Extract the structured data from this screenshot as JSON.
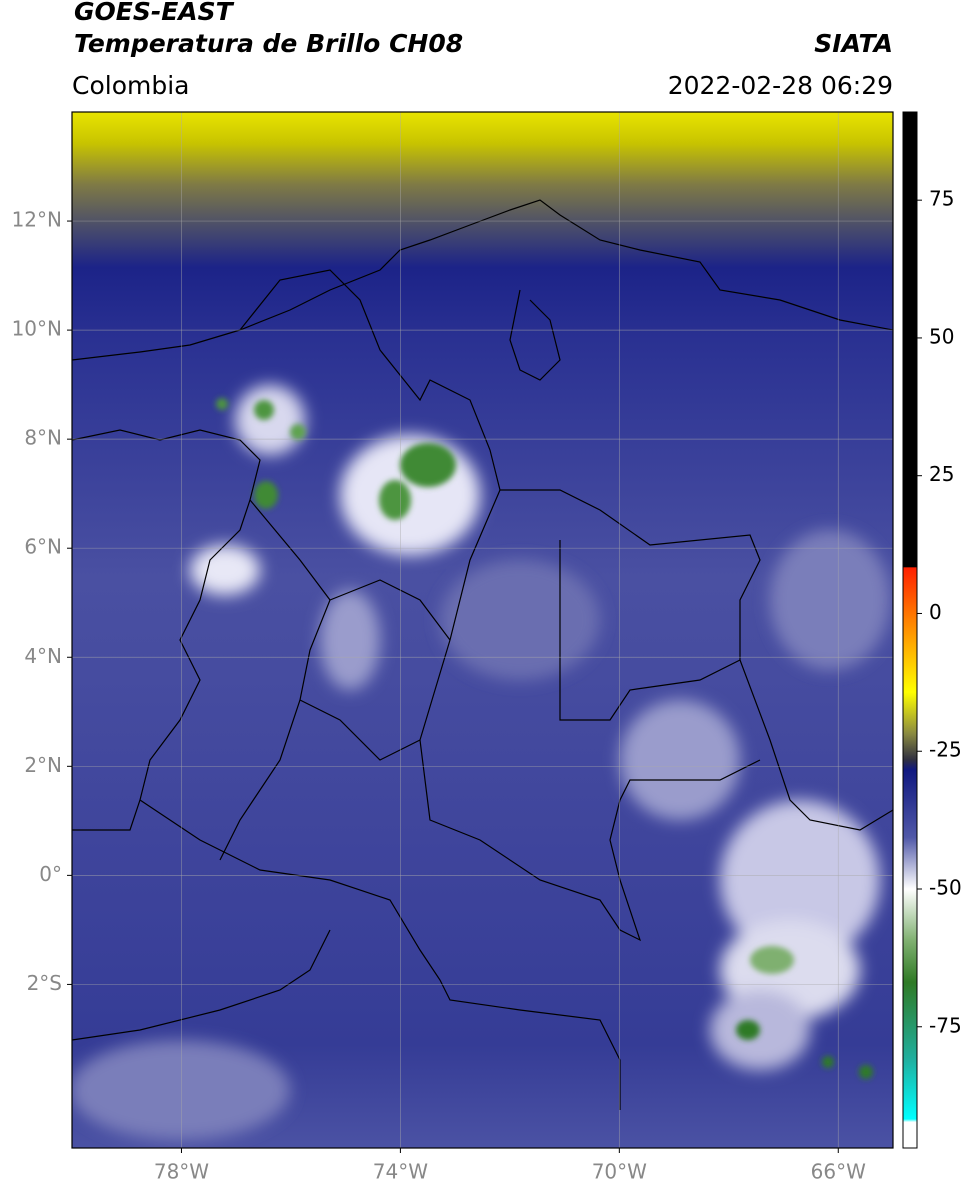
{
  "header": {
    "satellite": "GOES-EAST",
    "product": "Temperatura de Brillo CH08",
    "source": "SIATA",
    "region": "Colombia",
    "timestamp": "2022-02-28 06:29"
  },
  "map": {
    "xlim": [
      -80,
      -65
    ],
    "ylim": [
      -5,
      14
    ],
    "xticks": [
      {
        "value": -78,
        "label": "78°W"
      },
      {
        "value": -74,
        "label": "74°W"
      },
      {
        "value": -70,
        "label": "70°W"
      },
      {
        "value": -66,
        "label": "66°W"
      }
    ],
    "yticks": [
      {
        "value": -2,
        "label": "2°S"
      },
      {
        "value": 0,
        "label": "0°"
      },
      {
        "value": 2,
        "label": "2°N"
      },
      {
        "value": 4,
        "label": "4°N"
      },
      {
        "value": 6,
        "label": "6°N"
      },
      {
        "value": 8,
        "label": "8°N"
      },
      {
        "value": 10,
        "label": "10°N"
      },
      {
        "value": 12,
        "label": "12°N"
      }
    ],
    "grid": true
  },
  "colorbar": {
    "lim": [
      -97,
      91
    ],
    "ticks": [
      -75,
      -50,
      -25,
      0,
      25,
      50,
      75
    ]
  }
}
